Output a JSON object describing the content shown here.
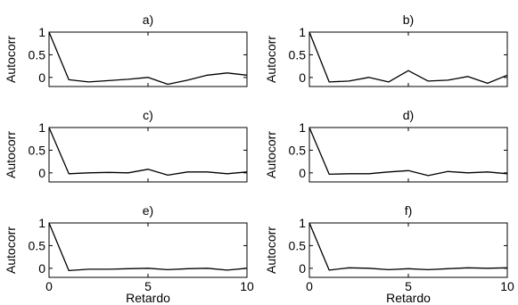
{
  "chart_data": [
    {
      "type": "line",
      "title": "a)",
      "xlabel": "",
      "ylabel": "Autocorr",
      "xlim": [
        0,
        10
      ],
      "ylim": [
        -0.2,
        1
      ],
      "xticks": [],
      "yticks": [
        "0",
        "0.5",
        "1"
      ],
      "x": [
        0,
        1,
        2,
        3,
        4,
        5,
        6,
        7,
        8,
        9,
        10
      ],
      "values": [
        1.0,
        -0.05,
        -0.1,
        -0.07,
        -0.04,
        0.0,
        -0.15,
        -0.06,
        0.05,
        0.1,
        0.05
      ]
    },
    {
      "type": "line",
      "title": "b)",
      "xlabel": "",
      "ylabel": "Autocorr",
      "xlim": [
        0,
        10
      ],
      "ylim": [
        -0.2,
        1
      ],
      "xticks": [],
      "yticks": [
        "0",
        "0.5",
        "1"
      ],
      "x": [
        0,
        1,
        2,
        3,
        4,
        5,
        6,
        7,
        8,
        9,
        10
      ],
      "values": [
        1.0,
        -0.1,
        -0.08,
        0.0,
        -0.1,
        0.15,
        -0.08,
        -0.06,
        0.02,
        -0.13,
        0.05
      ]
    },
    {
      "type": "line",
      "title": "c)",
      "xlabel": "",
      "ylabel": "Autocorr",
      "xlim": [
        0,
        10
      ],
      "ylim": [
        -0.2,
        1
      ],
      "xticks": [],
      "yticks": [
        "0",
        "0.5",
        "1"
      ],
      "x": [
        0,
        1,
        2,
        3,
        4,
        5,
        6,
        7,
        8,
        9,
        10
      ],
      "values": [
        1.0,
        -0.02,
        0.0,
        0.01,
        0.0,
        0.08,
        -0.05,
        0.02,
        0.02,
        -0.02,
        0.02
      ]
    },
    {
      "type": "line",
      "title": "d)",
      "xlabel": "",
      "ylabel": "Autocorr",
      "xlim": [
        0,
        10
      ],
      "ylim": [
        -0.2,
        1
      ],
      "xticks": [],
      "yticks": [
        "0",
        "0.5",
        "1"
      ],
      "x": [
        0,
        1,
        2,
        3,
        4,
        5,
        6,
        7,
        8,
        9,
        10
      ],
      "values": [
        1.0,
        -0.03,
        -0.02,
        -0.02,
        0.02,
        0.05,
        -0.06,
        0.03,
        0.0,
        0.02,
        -0.02
      ]
    },
    {
      "type": "line",
      "title": "e)",
      "xlabel": "Retardo",
      "ylabel": "Autocorr",
      "xlim": [
        0,
        10
      ],
      "ylim": [
        -0.2,
        1
      ],
      "xticks": [
        "0",
        "5",
        "10"
      ],
      "yticks": [
        "0",
        "0.5",
        "1"
      ],
      "x": [
        0,
        1,
        2,
        3,
        4,
        5,
        6,
        7,
        8,
        9,
        10
      ],
      "values": [
        1.0,
        -0.05,
        -0.02,
        -0.02,
        -0.01,
        0.0,
        -0.03,
        -0.01,
        0.0,
        -0.04,
        0.0
      ]
    },
    {
      "type": "line",
      "title": "f)",
      "xlabel": "Retardo",
      "ylabel": "Autocorr",
      "xlim": [
        0,
        10
      ],
      "ylim": [
        -0.2,
        1
      ],
      "xticks": [
        "0",
        "5",
        "10"
      ],
      "yticks": [
        "0",
        "0.5",
        "1"
      ],
      "x": [
        0,
        1,
        2,
        3,
        4,
        5,
        6,
        7,
        8,
        9,
        10
      ],
      "values": [
        1.0,
        -0.04,
        0.01,
        0.0,
        -0.03,
        -0.01,
        -0.03,
        -0.01,
        0.01,
        0.0,
        0.01
      ]
    }
  ]
}
